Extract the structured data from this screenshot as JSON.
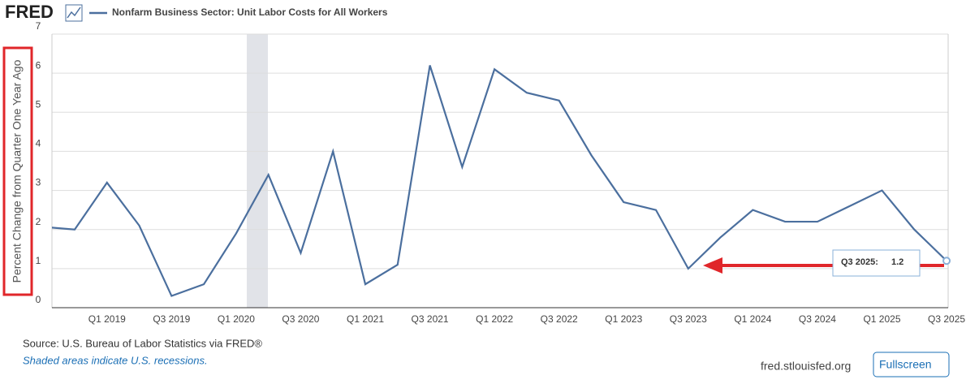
{
  "chart_data": {
    "type": "line",
    "brand": "FRED",
    "title": "Nonfarm Business Sector: Unit Labor Costs for All Workers",
    "y_label": "Percent Change from Quarter One Year Ago",
    "categories": [
      null,
      null,
      "Q1 2019",
      null,
      "Q3 2019",
      null,
      "Q1 2020",
      null,
      "Q3 2020",
      null,
      "Q1 2021",
      null,
      "Q3 2021",
      null,
      "Q1 2022",
      null,
      "Q3 2022",
      null,
      "Q1 2023",
      null,
      "Q3 2023",
      null,
      "Q1 2024",
      null,
      "Q3 2024",
      null,
      "Q1 2025",
      null,
      "Q3 2025"
    ],
    "series": [
      {
        "name": "Nonfarm Business Sector: Unit Labor Costs for All Workers",
        "color": "#4b6f9e",
        "values": [
          2.07,
          2.0,
          3.2,
          2.1,
          0.3,
          0.6,
          1.9,
          3.4,
          1.4,
          4.0,
          0.6,
          1.1,
          6.2,
          3.6,
          6.1,
          5.5,
          5.3,
          3.9,
          2.7,
          2.5,
          1.0,
          1.8,
          2.5,
          2.2,
          2.2,
          2.6,
          3.0,
          2.0,
          1.2
        ]
      }
    ],
    "ylim": [
      0,
      7
    ],
    "yticks": [
      0,
      1,
      2,
      3,
      4,
      5,
      6,
      7
    ],
    "grid": true,
    "tooltip_label": "Q3 2025:",
    "source": "Source: U.S. Bureau of Labor Statistics via FRED®",
    "note": "Shaded areas indicate U.S. recessions.",
    "site": "fred.stlouisfed.org",
    "button": "Fullscreen"
  }
}
